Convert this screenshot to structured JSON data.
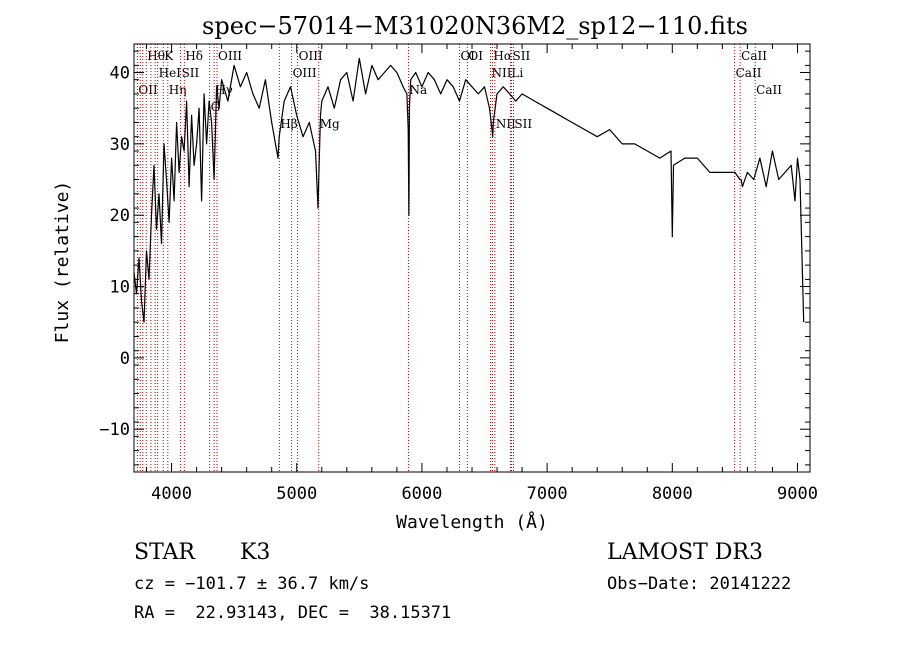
{
  "chart_data": {
    "type": "line",
    "title": "spec−57014−M31020N36M2_sp12−110.fits",
    "xlabel": "Wavelength (Å)",
    "ylabel": "Flux (relative)",
    "xlim": [
      3700,
      9100
    ],
    "ylim": [
      -16,
      44
    ],
    "xticks": [
      4000,
      5000,
      6000,
      7000,
      8000,
      9000
    ],
    "yticks": [
      -10,
      0,
      10,
      20,
      30,
      40
    ],
    "x_tick_labels": [
      "4000",
      "5000",
      "6000",
      "7000",
      "8000",
      "9000"
    ],
    "y_tick_labels": [
      "−10",
      "0",
      "10",
      "20",
      "30",
      "40"
    ],
    "grid": false,
    "series": [
      {
        "name": "flux",
        "x": [
          3700,
          3720,
          3740,
          3760,
          3780,
          3800,
          3820,
          3840,
          3860,
          3880,
          3900,
          3920,
          3940,
          3960,
          3980,
          4000,
          4020,
          4040,
          4060,
          4080,
          4100,
          4120,
          4140,
          4160,
          4180,
          4200,
          4220,
          4240,
          4260,
          4280,
          4300,
          4320,
          4340,
          4360,
          4380,
          4400,
          4450,
          4500,
          4550,
          4600,
          4650,
          4700,
          4750,
          4800,
          4850,
          4860,
          4900,
          4950,
          5000,
          5050,
          5100,
          5150,
          5170,
          5180,
          5190,
          5200,
          5250,
          5300,
          5350,
          5400,
          5450,
          5500,
          5550,
          5600,
          5650,
          5700,
          5750,
          5800,
          5850,
          5880,
          5890,
          5896,
          5900,
          5910,
          5950,
          6000,
          6050,
          6100,
          6150,
          6200,
          6250,
          6300,
          6350,
          6400,
          6450,
          6500,
          6540,
          6560,
          6565,
          6570,
          6600,
          6650,
          6700,
          6750,
          6800,
          6900,
          7000,
          7100,
          7200,
          7300,
          7400,
          7500,
          7600,
          7700,
          7800,
          7900,
          7990,
          8000,
          8010,
          8100,
          8200,
          8300,
          8400,
          8500,
          8540,
          8550,
          8560,
          8600,
          8650,
          8700,
          8750,
          8800,
          8850,
          8900,
          8950,
          8980,
          9000,
          9020,
          9050
        ],
        "y": [
          12,
          9,
          14,
          8,
          5,
          15,
          11,
          20,
          27,
          18,
          23,
          16,
          30,
          25,
          19,
          28,
          22,
          33,
          26,
          31,
          29,
          36,
          24,
          34,
          27,
          30,
          35,
          22,
          37,
          30,
          36,
          33,
          25,
          38,
          35,
          39,
          36,
          41,
          38,
          40,
          37,
          35,
          39,
          33,
          28,
          31,
          36,
          38,
          34,
          31,
          33,
          29,
          21,
          28,
          34,
          36,
          38,
          35,
          39,
          40,
          36,
          42,
          37,
          41,
          39,
          40,
          41,
          40,
          38,
          37,
          32,
          20,
          35,
          39,
          40,
          38,
          40,
          39,
          37,
          39,
          38,
          36,
          39,
          38,
          37,
          38,
          35,
          32,
          31,
          33,
          37,
          38,
          37,
          36,
          37,
          36,
          35,
          34,
          33,
          32,
          31,
          32,
          30,
          30,
          29,
          28,
          29,
          17,
          27,
          28,
          28,
          26,
          26,
          26,
          25,
          25,
          24,
          26,
          25,
          28,
          24,
          29,
          25,
          26,
          27,
          22,
          28,
          25,
          5
        ]
      }
    ],
    "line_markers": [
      {
        "wavelength": 3727,
        "label": "OII",
        "row": 2
      },
      {
        "wavelength": 3750,
        "label": "",
        "row": 0
      },
      {
        "wavelength": 3770,
        "label": "",
        "row": 0
      },
      {
        "wavelength": 3798,
        "label": "Hθ",
        "row": 0
      },
      {
        "wavelength": 3835,
        "label": "",
        "row": 0
      },
      {
        "wavelength": 3869,
        "label": "",
        "row": 0
      },
      {
        "wavelength": 3889,
        "label": "HeI",
        "row": 1
      },
      {
        "wavelength": 3934,
        "label": "K",
        "row": 0
      },
      {
        "wavelength": 3970,
        "label": "Hη",
        "row": 2
      },
      {
        "wavelength": 4072,
        "label": "SII",
        "row": 1
      },
      {
        "wavelength": 4102,
        "label": "Hδ",
        "row": 0
      },
      {
        "wavelength": 4304,
        "label": "G",
        "row": 3
      },
      {
        "wavelength": 4340,
        "label": "Hγ",
        "row": 2
      },
      {
        "wavelength": 4363,
        "label": "OIII",
        "row": 0
      },
      {
        "wavelength": 4861,
        "label": "Hβ",
        "row": 4
      },
      {
        "wavelength": 4959,
        "label": "OIII",
        "row": 1
      },
      {
        "wavelength": 5007,
        "label": "OIII",
        "row": 0
      },
      {
        "wavelength": 5176,
        "label": "Mg",
        "row": 4
      },
      {
        "wavelength": 5893,
        "label": "Na",
        "row": 2
      },
      {
        "wavelength": 6300,
        "label": "OI",
        "row": 0
      },
      {
        "wavelength": 6363,
        "label": "OI",
        "row": 0
      },
      {
        "wavelength": 6548,
        "label": "NII",
        "row": 1
      },
      {
        "wavelength": 6563,
        "label": "Hα",
        "row": 0
      },
      {
        "wavelength": 6583,
        "label": "NII",
        "row": 4
      },
      {
        "wavelength": 6707,
        "label": "Li",
        "row": 1
      },
      {
        "wavelength": 6716,
        "label": "SII",
        "row": 0
      },
      {
        "wavelength": 6731,
        "label": "SII",
        "row": 4
      },
      {
        "wavelength": 8498,
        "label": "CaII",
        "row": 1
      },
      {
        "wavelength": 8542,
        "label": "CaII",
        "row": 0
      },
      {
        "wavelength": 8662,
        "label": "CaII",
        "row": 2
      }
    ]
  },
  "info": {
    "class": "STAR",
    "subclass": "K3",
    "survey": "LAMOST DR3",
    "cz": "cz = −101.7 ± 36.7 km/s",
    "obs_date": "Obs−Date: 20141222",
    "coords": "RA =  22.93143, DEC =  38.15371"
  }
}
